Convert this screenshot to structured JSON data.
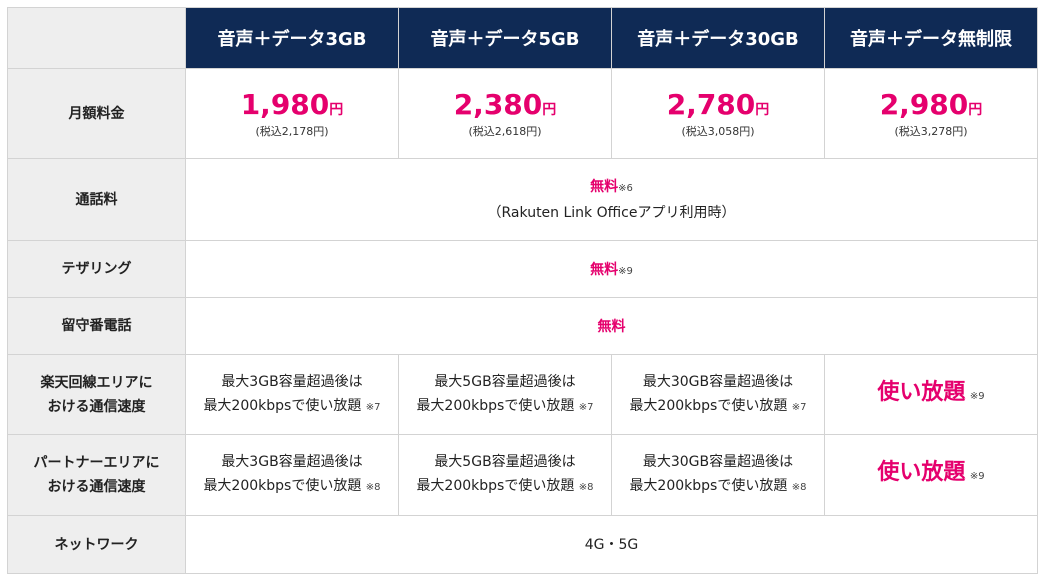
{
  "table": {
    "header": [
      "音声＋データ3GB",
      "音声＋データ5GB",
      "音声＋データ30GB",
      "音声＋データ無制限"
    ],
    "monthly": {
      "label": "月額料金",
      "cells": [
        {
          "price": "1,980",
          "unit": "円",
          "tax": "(税込2,178円)"
        },
        {
          "price": "2,380",
          "unit": "円",
          "tax": "(税込2,618円)"
        },
        {
          "price": "2,780",
          "unit": "円",
          "tax": "(税込3,058円)"
        },
        {
          "price": "2,980",
          "unit": "円",
          "tax": "(税込3,278円)"
        }
      ]
    },
    "call": {
      "label": "通話料",
      "value": "無料",
      "note": "※6",
      "sub": "（Rakuten Link Officeアプリ利用時）"
    },
    "tethering": {
      "label": "テザリング",
      "value": "無料",
      "note": "※9"
    },
    "voicemail": {
      "label": "留守番電話",
      "value": "無料"
    },
    "rakuten_speed": {
      "label_lines": [
        "楽天回線エリアに",
        "おける通信速度"
      ],
      "cells": [
        {
          "lines": [
            "最大3GB容量超過後は",
            "最大200kbpsで使い放題"
          ],
          "note": "※7"
        },
        {
          "lines": [
            "最大5GB容量超過後は",
            "最大200kbpsで使い放題"
          ],
          "note": "※7"
        },
        {
          "lines": [
            "最大30GB容量超過後は",
            "最大200kbpsで使い放題"
          ],
          "note": "※7"
        },
        {
          "big": "使い放題",
          "note": "※9"
        }
      ]
    },
    "partner_speed": {
      "label_lines": [
        "パートナーエリアに",
        "おける通信速度"
      ],
      "cells": [
        {
          "lines": [
            "最大3GB容量超過後は",
            "最大200kbpsで使い放題"
          ],
          "note": "※8"
        },
        {
          "lines": [
            "最大5GB容量超過後は",
            "最大200kbpsで使い放題"
          ],
          "note": "※8"
        },
        {
          "lines": [
            "最大30GB容量超過後は",
            "最大200kbpsで使い放題"
          ],
          "note": "※8"
        },
        {
          "big": "使い放題",
          "note": "※9"
        }
      ]
    },
    "network": {
      "label": "ネットワーク",
      "value": "4G・5G"
    }
  }
}
